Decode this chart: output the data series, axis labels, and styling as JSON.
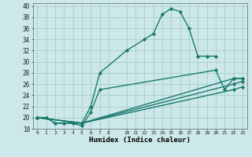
{
  "xlabel": "Humidex (Indice chaleur)",
  "background_color": "#cce8e8",
  "grid_color": "#aacccc",
  "line_color": "#1a7a6e",
  "xlim": [
    -0.5,
    23.5
  ],
  "ylim": [
    18,
    40.5
  ],
  "xtick_vals": [
    0,
    1,
    2,
    3,
    4,
    5,
    6,
    7,
    8,
    10,
    11,
    12,
    13,
    14,
    15,
    16,
    17,
    18,
    19,
    20,
    21,
    22,
    23
  ],
  "ytick_vals": [
    18,
    20,
    22,
    24,
    26,
    28,
    30,
    32,
    34,
    36,
    38,
    40
  ],
  "series": [
    {
      "x": [
        0,
        1,
        2,
        3,
        4,
        5,
        6,
        7,
        10,
        12,
        13,
        14,
        15,
        16,
        17,
        18,
        19,
        20
      ],
      "y": [
        20,
        20,
        19,
        19,
        19,
        19,
        22,
        28,
        32,
        34,
        35,
        38.5,
        39.5,
        39,
        36,
        31,
        31,
        31
      ]
    },
    {
      "x": [
        0,
        1,
        2,
        3,
        4,
        5,
        6,
        7,
        20,
        21,
        22,
        23
      ],
      "y": [
        20,
        20,
        19,
        19,
        19,
        18.5,
        21,
        25,
        28.5,
        25,
        27,
        27
      ]
    },
    {
      "x": [
        0,
        5,
        22,
        23
      ],
      "y": [
        20,
        19,
        27,
        27
      ]
    },
    {
      "x": [
        0,
        5,
        22,
        23
      ],
      "y": [
        20,
        19,
        26,
        26.5
      ]
    },
    {
      "x": [
        0,
        5,
        22,
        23
      ],
      "y": [
        20,
        19,
        25,
        25.5
      ]
    }
  ]
}
